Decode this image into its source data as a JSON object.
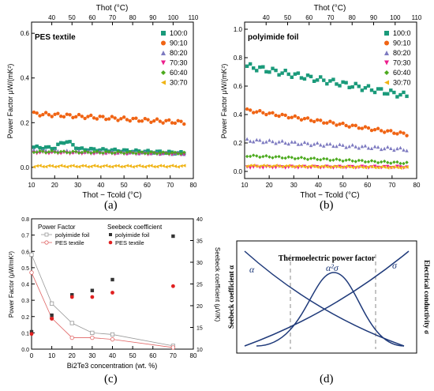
{
  "panel_labels": [
    "(a)",
    "(b)",
    "(c)",
    "(d)"
  ],
  "series_colors": {
    "100:0": "#1a9a7a",
    "90:10": "#f06414",
    "80:20": "#7d7ac0",
    "70:30": "#ec1e8c",
    "60:40": "#4caa1e",
    "30:70": "#f0b414"
  },
  "chart_data": [
    {
      "type": "scatter",
      "panel": "(a)",
      "title": "PES textile",
      "xlabel": "Thot − Tcold (°C)",
      "x2label": "Thot (°C)",
      "ylabel": "Power Factor μW/(mK²)",
      "xlim": [
        10,
        80
      ],
      "ylim": [
        -0.05,
        0.65
      ],
      "x2lim": [
        30,
        110
      ],
      "xticks": [
        "10",
        "20",
        "30",
        "40",
        "50",
        "60",
        "70",
        "80"
      ],
      "x2ticks": [
        "40",
        "50",
        "60",
        "70",
        "80",
        "90",
        "100",
        "110"
      ],
      "yticks": [
        "0.0",
        "0.2",
        "0.4",
        "0.6"
      ],
      "legend_position": "top-right",
      "series": [
        {
          "name": "100:0",
          "marker": "square",
          "base": 0.09,
          "amp": 0.005,
          "slope": -0.0004,
          "bump": 0.03
        },
        {
          "name": "90:10",
          "marker": "circle",
          "base": 0.24,
          "amp": 0.008,
          "slope": -0.0006,
          "bump": 0.0
        },
        {
          "name": "80:20",
          "marker": "triangle-up",
          "base": 0.075,
          "amp": 0.004,
          "slope": -0.0002,
          "bump": 0.0
        },
        {
          "name": "70:30",
          "marker": "triangle-down",
          "base": 0.065,
          "amp": 0.003,
          "slope": -0.0001,
          "bump": 0.0
        },
        {
          "name": "60:40",
          "marker": "diamond",
          "base": 0.07,
          "amp": 0.004,
          "slope": -0.0001,
          "bump": 0.0
        },
        {
          "name": "30:70",
          "marker": "triangle-left",
          "base": 0.005,
          "amp": 0.003,
          "slope": 0.0,
          "bump": 0.0
        }
      ]
    },
    {
      "type": "scatter",
      "panel": "(b)",
      "title": "polyimide foil",
      "xlabel": "Thot − Tcold (°C)",
      "x2label": "Thot (°C)",
      "ylabel": "Power Factor μW/(mK²)",
      "xlim": [
        10,
        80
      ],
      "ylim": [
        -0.05,
        1.05
      ],
      "x2lim": [
        30,
        110
      ],
      "xticks": [
        "10",
        "20",
        "30",
        "40",
        "50",
        "60",
        "70",
        "80"
      ],
      "x2ticks": [
        "40",
        "50",
        "60",
        "70",
        "80",
        "90",
        "100",
        "110"
      ],
      "yticks": [
        "0.0",
        "0.2",
        "0.4",
        "0.6",
        "0.8",
        "1.0"
      ],
      "legend_position": "top-right",
      "series": [
        {
          "name": "100:0",
          "marker": "square",
          "base": 0.74,
          "amp": 0.02,
          "slope": -0.0032,
          "bump": 0.0
        },
        {
          "name": "90:10",
          "marker": "circle",
          "base": 0.43,
          "amp": 0.01,
          "slope": -0.0026,
          "bump": 0.0
        },
        {
          "name": "80:20",
          "marker": "triangle-up",
          "base": 0.22,
          "amp": 0.01,
          "slope": -0.001,
          "bump": 0.0
        },
        {
          "name": "70:30",
          "marker": "triangle-down",
          "base": 0.03,
          "amp": 0.005,
          "slope": 0.0,
          "bump": 0.0
        },
        {
          "name": "60:40",
          "marker": "diamond",
          "base": 0.11,
          "amp": 0.006,
          "slope": -0.0008,
          "bump": 0.0
        },
        {
          "name": "30:70",
          "marker": "triangle-left",
          "base": 0.04,
          "amp": 0.004,
          "slope": -0.0002,
          "bump": 0.0
        }
      ]
    },
    {
      "type": "line",
      "panel": "(c)",
      "xlabel": "Bi2Te3 concentration (wt. %)",
      "ylabel": "Power Factor (μW/mK²)",
      "y2label": "Seebeck coefficient (μV/K)",
      "xlim": [
        0,
        80
      ],
      "ylim": [
        0,
        0.8
      ],
      "y2lim": [
        10,
        40
      ],
      "xticks": [
        "0",
        "10",
        "20",
        "30",
        "40",
        "50",
        "60",
        "70",
        "80"
      ],
      "yticks": [
        "0.0",
        "0.1",
        "0.2",
        "0.3",
        "0.4",
        "0.5",
        "0.6",
        "0.7",
        "0.8"
      ],
      "y2ticks": [
        "10",
        "15",
        "20",
        "25",
        "30",
        "35",
        "40"
      ],
      "legend_groups": [
        {
          "title": "Power Factor",
          "items": [
            "polyimide foil",
            "PES textile"
          ]
        },
        {
          "title": "Seebeck coefficient",
          "items": [
            "polyimide foil",
            "PES textile"
          ]
        }
      ],
      "x": [
        0,
        10,
        20,
        30,
        40,
        70
      ],
      "power_factor": [
        {
          "name": "polyimide foil",
          "color": "#999999",
          "values": [
            0.58,
            0.28,
            0.16,
            0.1,
            0.09,
            0.02
          ]
        },
        {
          "name": "PES textile",
          "color": "#e06464",
          "values": [
            0.47,
            0.19,
            0.07,
            0.07,
            0.06,
            0.01
          ]
        }
      ],
      "seebeck": [
        {
          "name": "polyimide foil",
          "color": "#333333",
          "values": [
            14.0,
            17.8,
            22.5,
            23.5,
            26.0,
            36.0
          ]
        },
        {
          "name": "PES textile",
          "color": "#e02020",
          "values": [
            13.5,
            17.0,
            22.0,
            22.0,
            23.0,
            24.5
          ]
        }
      ]
    },
    {
      "type": "diagram",
      "panel": "(d)",
      "title": "Thermoelectric power factor",
      "left_axis": "Seebeck coefficient α",
      "right_axis": "Electrical conductivity σ",
      "curve_labels": [
        "α",
        "α²σ",
        "σ"
      ]
    }
  ]
}
